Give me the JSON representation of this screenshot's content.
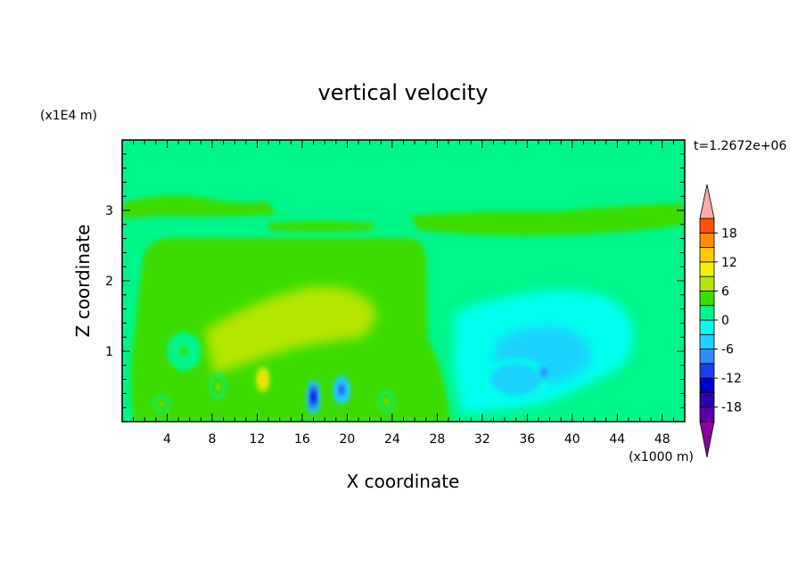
{
  "chart_data": {
    "type": "heatmap",
    "title": "vertical velocity",
    "xlabel": "X coordinate",
    "ylabel": "Z coordinate",
    "x_unit": "(x1000 m)",
    "y_unit": "(x1E4 m)",
    "time_label": "t=1.2672e+06",
    "xlim": [
      0,
      50
    ],
    "ylim": [
      0,
      4
    ],
    "x_ticks": [
      4,
      8,
      12,
      16,
      20,
      24,
      28,
      32,
      36,
      40,
      44,
      48
    ],
    "y_ticks": [
      1,
      2,
      3
    ],
    "colorbar": {
      "labels": [
        18,
        12,
        6,
        0,
        -6,
        -12,
        -18
      ],
      "levels": [
        -21,
        -18,
        -15,
        -12,
        -9,
        -6,
        -3,
        0,
        3,
        6,
        9,
        12,
        15,
        18,
        21
      ],
      "colors": [
        "#8e009e",
        "#5b00a8",
        "#2a00b0",
        "#0000cc",
        "#1c3cf0",
        "#2e8bff",
        "#1ed0ff",
        "#00ffee",
        "#00f58a",
        "#3cdc00",
        "#b4e600",
        "#f0f000",
        "#ffc800",
        "#ff8c00",
        "#ff5000",
        "#e61414",
        "#ffaaaa"
      ]
    },
    "features": [
      {
        "x": 5.5,
        "z": 1.0,
        "w": 3.0,
        "h": 0.55,
        "w_value": 3
      },
      {
        "x": 8.5,
        "z": 0.5,
        "w": 1.4,
        "h": 0.35,
        "w_value": 6
      },
      {
        "x": 12.5,
        "z": 0.6,
        "w": 1.7,
        "h": 0.5,
        "w_value": 14
      },
      {
        "x": 17.0,
        "z": 0.35,
        "w": 1.2,
        "h": 0.5,
        "w_value": -13
      },
      {
        "x": 19.5,
        "z": 0.45,
        "w": 1.5,
        "h": 0.4,
        "w_value": -10
      },
      {
        "x": 23.5,
        "z": 0.28,
        "w": 1.4,
        "h": 0.3,
        "w_value": 6
      },
      {
        "x": 3.5,
        "z": 0.25,
        "w": 1.4,
        "h": 0.25,
        "w_value": 6
      },
      {
        "x": 35.0,
        "z": 0.6,
        "w": 6.0,
        "h": 0.6,
        "w_value": -6
      },
      {
        "x": 37.5,
        "z": 0.7,
        "w": 1.2,
        "h": 0.25,
        "w_value": -9
      }
    ]
  }
}
